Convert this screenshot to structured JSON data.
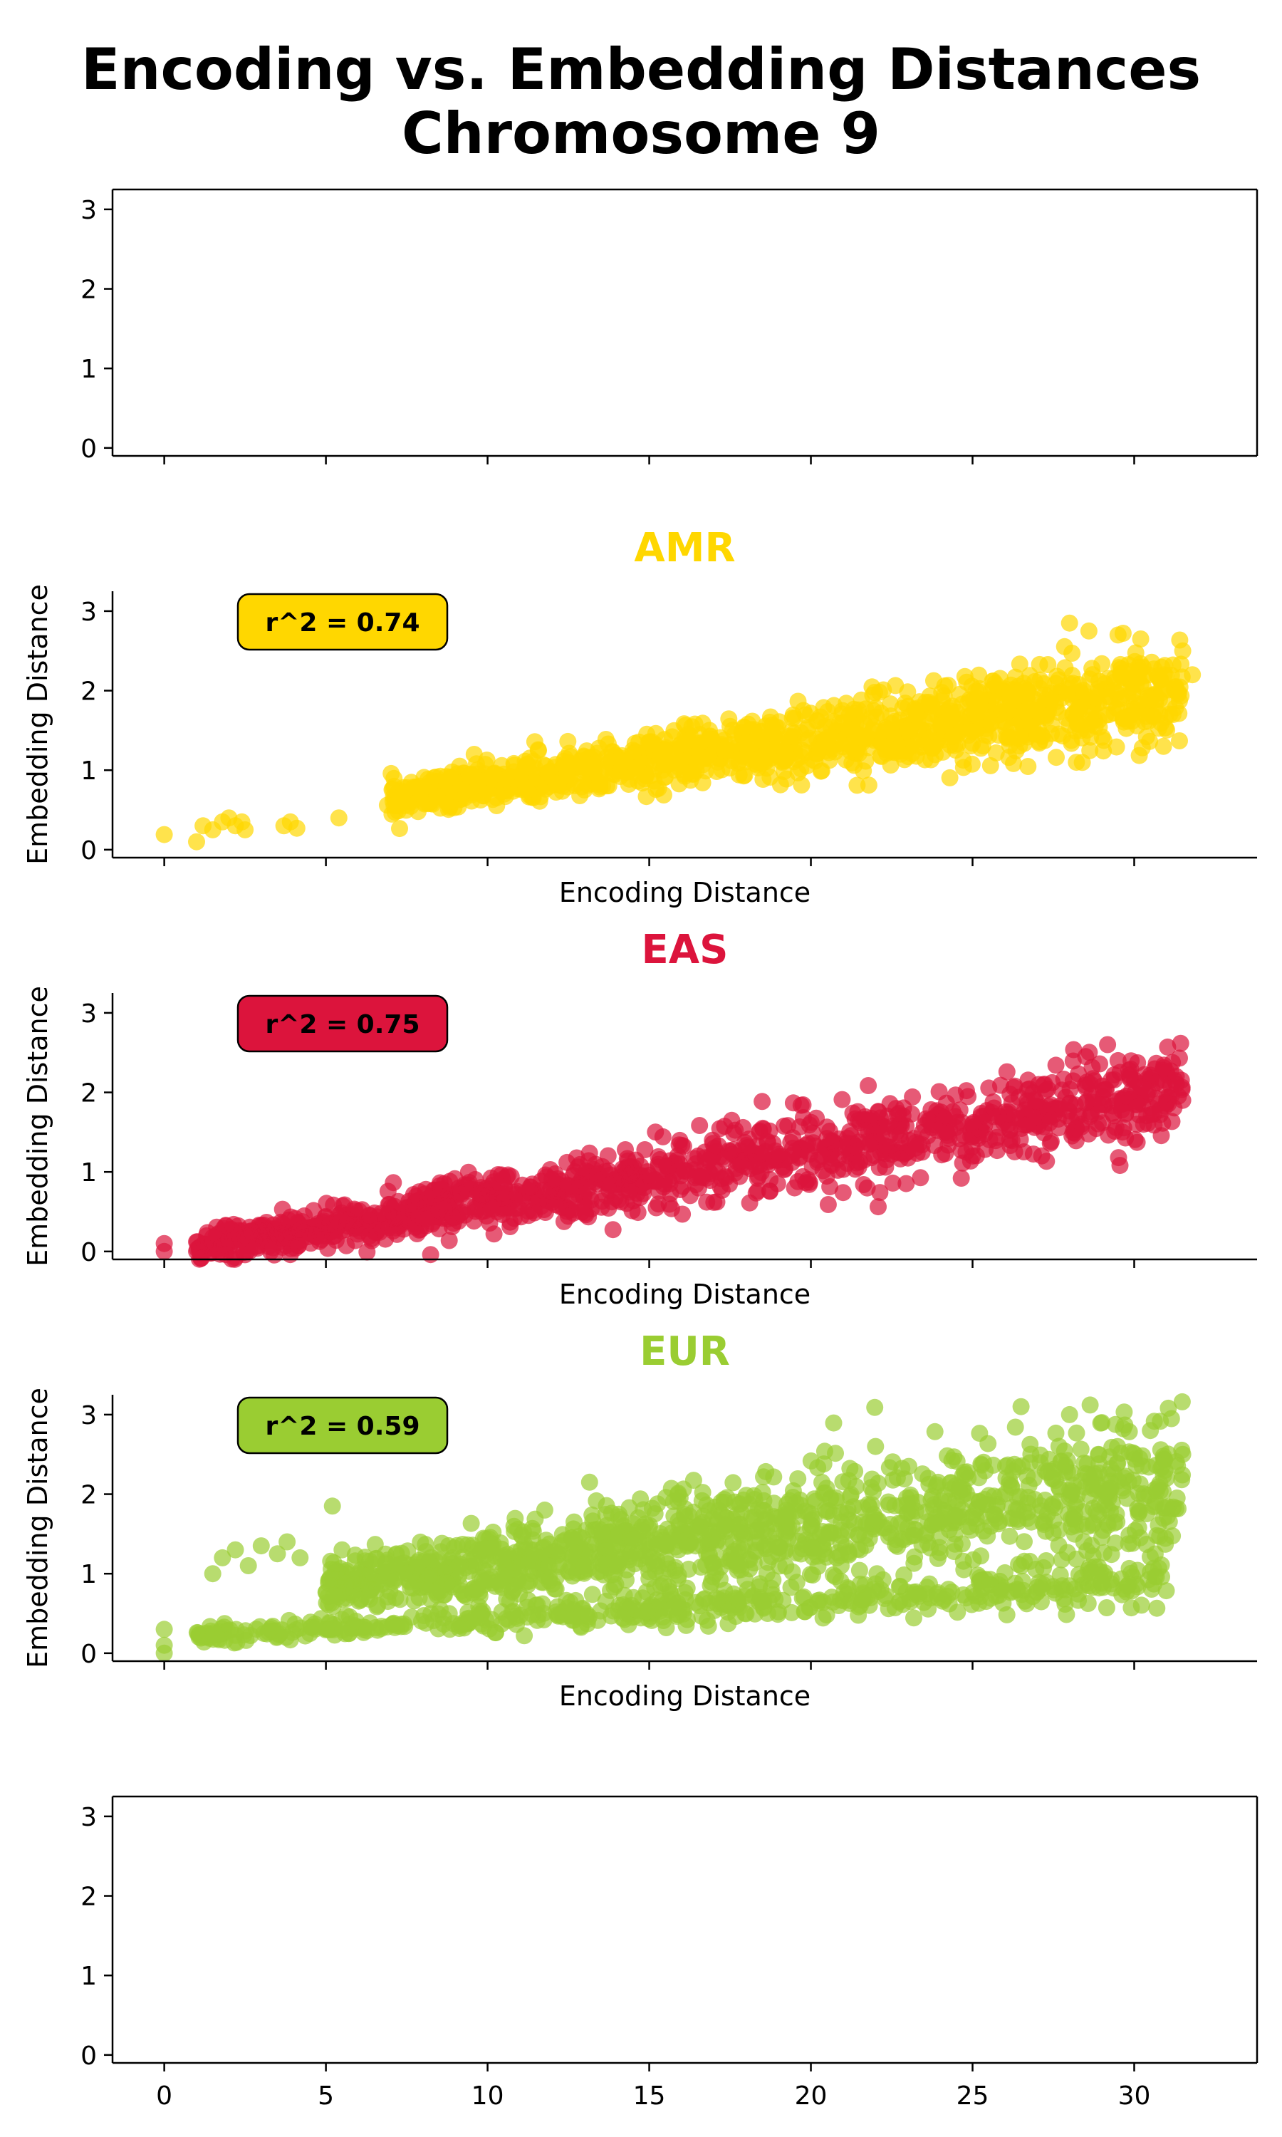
{
  "title_line1": "Encoding vs. Embedding Distances",
  "title_line2": "Chromosome 9",
  "chart_data": [
    {
      "type": "scatter",
      "title": "",
      "xlabel": "",
      "ylabel": "",
      "xlim": [
        -1.6,
        33.8
      ],
      "ylim": [
        -0.1,
        3.25
      ],
      "yticks": [
        0,
        1,
        2,
        3
      ],
      "series": []
    },
    {
      "type": "scatter",
      "title": "AMR",
      "title_color": "#FFD700",
      "annotation": "r^2 = 0.74",
      "annotation_bg": "#FFD700",
      "xlabel": "Encoding Distance",
      "ylabel": "Embedding Distance",
      "xlim": [
        -1.6,
        33.8
      ],
      "ylim": [
        -0.1,
        3.25
      ],
      "yticks": [
        0,
        1,
        2,
        3
      ],
      "series": [
        {
          "color": "#FFD700",
          "trend": {
            "x": [
              7,
              31.5
            ],
            "y": [
              0.65,
              2.0
            ],
            "spread": 0.25
          },
          "points": [
            [
              0,
              0.19
            ],
            [
              1,
              0.1
            ],
            [
              1.2,
              0.3
            ],
            [
              1.5,
              0.25
            ],
            [
              1.8,
              0.35
            ],
            [
              2.0,
              0.4
            ],
            [
              2.2,
              0.3
            ],
            [
              2.5,
              0.25
            ],
            [
              2.4,
              0.35
            ],
            [
              3.7,
              0.3
            ],
            [
              3.9,
              0.35
            ],
            [
              4.1,
              0.27
            ],
            [
              5.4,
              0.4
            ],
            [
              6.9,
              0.56
            ],
            [
              28.0,
              2.85
            ],
            [
              28.6,
              2.75
            ],
            [
              29.5,
              2.7
            ],
            [
              30.2,
              2.65
            ],
            [
              31.5,
              2.5
            ],
            [
              31.8,
              2.2
            ],
            [
              31.2,
              1.7
            ],
            [
              27.0,
              1.45
            ]
          ]
        }
      ]
    },
    {
      "type": "scatter",
      "title": "EAS",
      "title_color": "#DC143C",
      "annotation": "r^2 = 0.75",
      "annotation_bg": "#DC143C",
      "xlabel": "Encoding Distance",
      "ylabel": "Embedding Distance",
      "xlim": [
        -1.6,
        33.8
      ],
      "ylim": [
        -0.1,
        3.25
      ],
      "yticks": [
        0,
        1,
        2,
        3
      ],
      "series": [
        {
          "color": "#DC143C",
          "trend": {
            "x": [
              1,
              31.5
            ],
            "y": [
              0.05,
              2.0
            ],
            "spread": 0.26
          },
          "points": [
            [
              0,
              0.0
            ],
            [
              0,
              0.1
            ],
            [
              1,
              0.0
            ],
            [
              1,
              0.12
            ],
            [
              1.5,
              0.1
            ],
            [
              2.0,
              0.15
            ],
            [
              2.5,
              0.2
            ],
            [
              3.0,
              0.25
            ],
            [
              3.5,
              0.22
            ],
            [
              28.5,
              2.45
            ],
            [
              29.5,
              2.4
            ],
            [
              31.3,
              2.2
            ],
            [
              31.5,
              1.9
            ],
            [
              28.2,
              1.55
            ],
            [
              25.0,
              1.2
            ]
          ]
        }
      ]
    },
    {
      "type": "scatter",
      "title": "EUR",
      "title_color": "#9ACD32",
      "annotation": "r^2 = 0.59",
      "annotation_bg": "#9ACD32",
      "xlabel": "Encoding Distance",
      "ylabel": "Embedding Distance",
      "xlim": [
        -1.6,
        33.8
      ],
      "ylim": [
        -0.1,
        3.25
      ],
      "yticks": [
        0,
        1,
        2,
        3
      ],
      "series": [
        {
          "color": "#9ACD32",
          "trend": {
            "x": [
              5,
              31.5
            ],
            "y": [
              0.85,
              2.15
            ],
            "spread": 0.4
          },
          "trend2": {
            "x": [
              1,
              31
            ],
            "y": [
              0.22,
              0.9
            ],
            "spread": 0.12
          },
          "points": [
            [
              0,
              0.3
            ],
            [
              0,
              0.1
            ],
            [
              0,
              0.0
            ],
            [
              1.5,
              1.0
            ],
            [
              1.8,
              1.2
            ],
            [
              2.2,
              1.3
            ],
            [
              2.6,
              1.1
            ],
            [
              3.0,
              1.35
            ],
            [
              3.5,
              1.25
            ],
            [
              3.8,
              1.4
            ],
            [
              4.2,
              1.2
            ],
            [
              5.2,
              1.85
            ],
            [
              5.5,
              1.3
            ],
            [
              6.0,
              1.0
            ],
            [
              26.5,
              3.1
            ],
            [
              28.0,
              3.0
            ],
            [
              29.0,
              2.9
            ],
            [
              30.5,
              2.8
            ],
            [
              31.5,
              2.5
            ],
            [
              31.0,
              2.2
            ],
            [
              22.0,
              2.6
            ]
          ]
        }
      ]
    },
    {
      "type": "scatter",
      "title": "",
      "xlabel": "",
      "ylabel": "",
      "xlim": [
        -1.6,
        33.8
      ],
      "ylim": [
        -0.1,
        3.25
      ],
      "yticks": [
        0,
        1,
        2,
        3
      ],
      "xticks": [
        0,
        5,
        10,
        15,
        20,
        25,
        30
      ],
      "series": []
    }
  ]
}
